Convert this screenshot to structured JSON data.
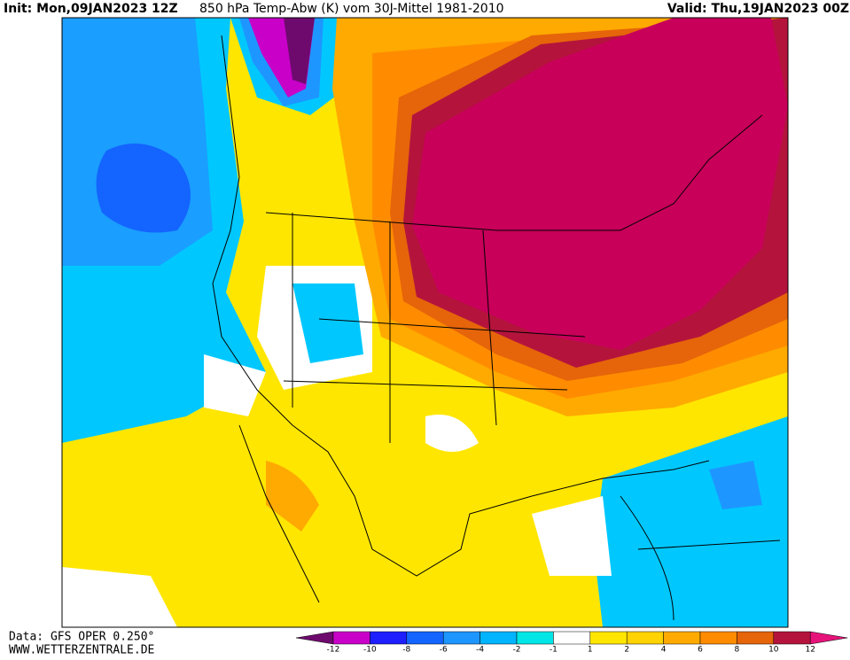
{
  "header": {
    "init": "Init: Mon,09JAN2023 12Z",
    "title": "850 hPa Temp-Abw (K) vom 30J-Mittel 1981-2010",
    "valid": "Valid: Thu,19JAN2023 00Z"
  },
  "footer": {
    "source": "Data: GFS OPER 0.250°",
    "website": "WWW.WETTERZENTRALE.DE"
  },
  "colorbar": {
    "ticks": [
      -12,
      -10,
      -8,
      -6,
      -4,
      -2,
      -1,
      1,
      2,
      4,
      6,
      8,
      10,
      12
    ],
    "under_color": "#6e0a6e",
    "over_color": "#e6147a",
    "colors": [
      "#c800c8",
      "#1e1eff",
      "#1464ff",
      "#1e96ff",
      "#00b4ff",
      "#00e6e6",
      "#ffffff",
      "#ffe600",
      "#ffd200",
      "#ffaa00",
      "#ff8c00",
      "#e6640a",
      "#b4143c"
    ]
  }
}
